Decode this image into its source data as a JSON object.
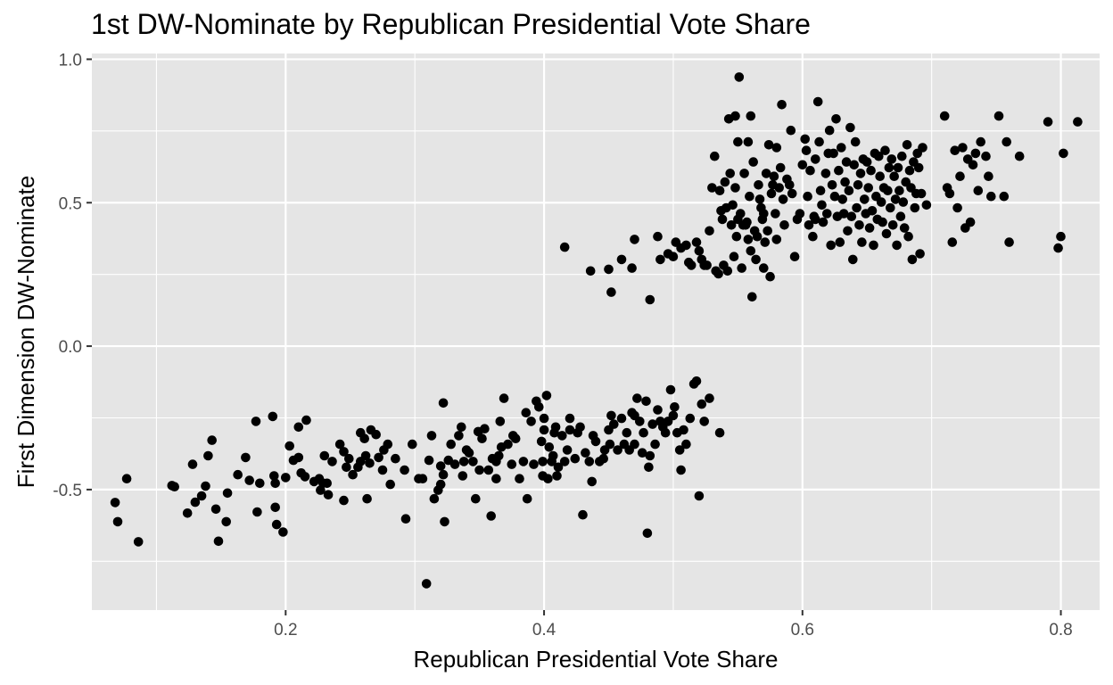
{
  "chart_data": {
    "type": "scatter",
    "title": "1st DW-Nominate by Republican Presidential Vote Share",
    "xlabel": "Republican Presidential Vote Share",
    "ylabel": "First Dimension DW-Nominate",
    "xlim": [
      0.05,
      0.83
    ],
    "ylim": [
      -0.92,
      1.02
    ],
    "x_ticks": [
      0.2,
      0.4,
      0.6,
      0.8
    ],
    "x_tick_labels": [
      "0.2",
      "0.4",
      "0.6",
      "0.8"
    ],
    "x_minor_ticks": [
      0.1,
      0.3,
      0.5,
      0.7
    ],
    "y_ticks": [
      -0.5,
      0.0,
      0.5,
      1.0
    ],
    "y_tick_labels": [
      "-0.5",
      "0.0",
      "0.5",
      "1.0"
    ],
    "y_minor_ticks": [
      -0.75,
      -0.25,
      0.25,
      0.75
    ],
    "grid": true,
    "colors": {
      "panel": "#e5e5e5",
      "grid": "#ffffff",
      "point": "#000000",
      "tick_text": "#4d4d4d"
    },
    "points": [
      [
        0.068,
        -0.545
      ],
      [
        0.07,
        -0.612
      ],
      [
        0.077,
        -0.462
      ],
      [
        0.086,
        -0.682
      ],
      [
        0.112,
        -0.486
      ],
      [
        0.114,
        -0.49
      ],
      [
        0.124,
        -0.582
      ],
      [
        0.128,
        -0.412
      ],
      [
        0.13,
        -0.544
      ],
      [
        0.135,
        -0.522
      ],
      [
        0.138,
        -0.488
      ],
      [
        0.14,
        -0.382
      ],
      [
        0.143,
        -0.328
      ],
      [
        0.146,
        -0.568
      ],
      [
        0.148,
        -0.68
      ],
      [
        0.154,
        -0.612
      ],
      [
        0.155,
        -0.512
      ],
      [
        0.163,
        -0.448
      ],
      [
        0.169,
        -0.388
      ],
      [
        0.172,
        -0.468
      ],
      [
        0.177,
        -0.262
      ],
      [
        0.178,
        -0.578
      ],
      [
        0.18,
        -0.478
      ],
      [
        0.19,
        -0.245
      ],
      [
        0.191,
        -0.452
      ],
      [
        0.192,
        -0.478
      ],
      [
        0.192,
        -0.562
      ],
      [
        0.193,
        -0.622
      ],
      [
        0.198,
        -0.648
      ],
      [
        0.2,
        -0.458
      ],
      [
        0.203,
        -0.348
      ],
      [
        0.206,
        -0.398
      ],
      [
        0.21,
        -0.282
      ],
      [
        0.21,
        -0.388
      ],
      [
        0.212,
        -0.442
      ],
      [
        0.215,
        -0.455
      ],
      [
        0.216,
        -0.258
      ],
      [
        0.222,
        -0.472
      ],
      [
        0.226,
        -0.462
      ],
      [
        0.227,
        -0.502
      ],
      [
        0.229,
        -0.478
      ],
      [
        0.23,
        -0.382
      ],
      [
        0.232,
        -0.478
      ],
      [
        0.233,
        -0.518
      ],
      [
        0.236,
        -0.402
      ],
      [
        0.242,
        -0.342
      ],
      [
        0.245,
        -0.368
      ],
      [
        0.245,
        -0.538
      ],
      [
        0.247,
        -0.422
      ],
      [
        0.249,
        -0.392
      ],
      [
        0.252,
        -0.448
      ],
      [
        0.256,
        -0.422
      ],
      [
        0.258,
        -0.302
      ],
      [
        0.258,
        -0.402
      ],
      [
        0.261,
        -0.322
      ],
      [
        0.262,
        -0.382
      ],
      [
        0.263,
        -0.532
      ],
      [
        0.265,
        -0.408
      ],
      [
        0.266,
        -0.292
      ],
      [
        0.27,
        -0.308
      ],
      [
        0.272,
        -0.388
      ],
      [
        0.275,
        -0.432
      ],
      [
        0.276,
        -0.362
      ],
      [
        0.279,
        -0.342
      ],
      [
        0.281,
        -0.482
      ],
      [
        0.285,
        -0.392
      ],
      [
        0.292,
        -0.432
      ],
      [
        0.293,
        -0.602
      ],
      [
        0.298,
        -0.342
      ],
      [
        0.303,
        -0.462
      ],
      [
        0.306,
        -0.462
      ],
      [
        0.309,
        -0.828
      ],
      [
        0.311,
        -0.398
      ],
      [
        0.313,
        -0.312
      ],
      [
        0.315,
        -0.532
      ],
      [
        0.318,
        -0.502
      ],
      [
        0.32,
        -0.418
      ],
      [
        0.32,
        -0.482
      ],
      [
        0.322,
        -0.448
      ],
      [
        0.322,
        -0.198
      ],
      [
        0.323,
        -0.612
      ],
      [
        0.326,
        -0.398
      ],
      [
        0.328,
        -0.342
      ],
      [
        0.331,
        -0.412
      ],
      [
        0.334,
        -0.312
      ],
      [
        0.336,
        -0.282
      ],
      [
        0.337,
        -0.452
      ],
      [
        0.338,
        -0.402
      ],
      [
        0.34,
        -0.362
      ],
      [
        0.342,
        -0.372
      ],
      [
        0.345,
        -0.402
      ],
      [
        0.347,
        -0.532
      ],
      [
        0.349,
        -0.298
      ],
      [
        0.35,
        -0.432
      ],
      [
        0.352,
        -0.322
      ],
      [
        0.354,
        -0.288
      ],
      [
        0.357,
        -0.432
      ],
      [
        0.359,
        -0.592
      ],
      [
        0.36,
        -0.392
      ],
      [
        0.363,
        -0.462
      ],
      [
        0.363,
        -0.402
      ],
      [
        0.365,
        -0.382
      ],
      [
        0.366,
        -0.262
      ],
      [
        0.367,
        -0.352
      ],
      [
        0.369,
        -0.182
      ],
      [
        0.372,
        -0.342
      ],
      [
        0.375,
        -0.412
      ],
      [
        0.376,
        -0.312
      ],
      [
        0.378,
        -0.322
      ],
      [
        0.381,
        -0.462
      ],
      [
        0.384,
        -0.402
      ],
      [
        0.386,
        -0.232
      ],
      [
        0.387,
        -0.532
      ],
      [
        0.39,
        -0.262
      ],
      [
        0.392,
        -0.412
      ],
      [
        0.394,
        -0.192
      ],
      [
        0.396,
        -0.212
      ],
      [
        0.398,
        -0.332
      ],
      [
        0.399,
        -0.402
      ],
      [
        0.399,
        -0.452
      ],
      [
        0.4,
        -0.252
      ],
      [
        0.4,
        -0.292
      ],
      [
        0.402,
        -0.172
      ],
      [
        0.403,
        -0.462
      ],
      [
        0.404,
        -0.352
      ],
      [
        0.406,
        -0.402
      ],
      [
        0.407,
        -0.382
      ],
      [
        0.408,
        -0.302
      ],
      [
        0.409,
        -0.282
      ],
      [
        0.41,
        -0.452
      ],
      [
        0.411,
        -0.422
      ],
      [
        0.414,
        -0.312
      ],
      [
        0.416,
        -0.402
      ],
      [
        0.418,
        -0.362
      ],
      [
        0.42,
        -0.292
      ],
      [
        0.42,
        -0.252
      ],
      [
        0.424,
        -0.392
      ],
      [
        0.426,
        -0.302
      ],
      [
        0.428,
        -0.282
      ],
      [
        0.43,
        -0.588
      ],
      [
        0.432,
        -0.372
      ],
      [
        0.435,
        -0.402
      ],
      [
        0.437,
        -0.472
      ],
      [
        0.438,
        -0.312
      ],
      [
        0.44,
        -0.332
      ],
      [
        0.443,
        -0.402
      ],
      [
        0.446,
        -0.392
      ],
      [
        0.447,
        -0.362
      ],
      [
        0.45,
        -0.292
      ],
      [
        0.451,
        -0.342
      ],
      [
        0.452,
        -0.242
      ],
      [
        0.454,
        -0.272
      ],
      [
        0.457,
        -0.362
      ],
      [
        0.46,
        -0.252
      ],
      [
        0.462,
        -0.342
      ],
      [
        0.464,
        -0.302
      ],
      [
        0.466,
        -0.362
      ],
      [
        0.468,
        -0.232
      ],
      [
        0.47,
        -0.342
      ],
      [
        0.47,
        -0.242
      ],
      [
        0.472,
        -0.182
      ],
      [
        0.474,
        -0.262
      ],
      [
        0.476,
        -0.372
      ],
      [
        0.477,
        -0.302
      ],
      [
        0.479,
        -0.192
      ],
      [
        0.48,
        -0.652
      ],
      [
        0.481,
        -0.422
      ],
      [
        0.482,
        -0.382
      ],
      [
        0.484,
        -0.272
      ],
      [
        0.486,
        -0.342
      ],
      [
        0.488,
        -0.222
      ],
      [
        0.49,
        -0.262
      ],
      [
        0.492,
        -0.282
      ],
      [
        0.494,
        -0.302
      ],
      [
        0.496,
        -0.262
      ],
      [
        0.498,
        -0.152
      ],
      [
        0.5,
        -0.242
      ],
      [
        0.501,
        -0.212
      ],
      [
        0.503,
        -0.302
      ],
      [
        0.505,
        -0.362
      ],
      [
        0.506,
        -0.432
      ],
      [
        0.508,
        -0.292
      ],
      [
        0.51,
        -0.342
      ],
      [
        0.513,
        -0.252
      ],
      [
        0.516,
        -0.132
      ],
      [
        0.518,
        -0.122
      ],
      [
        0.52,
        -0.522
      ],
      [
        0.522,
        -0.202
      ],
      [
        0.524,
        -0.262
      ],
      [
        0.528,
        -0.182
      ],
      [
        0.536,
        -0.302
      ],
      [
        0.416,
        0.345
      ],
      [
        0.436,
        0.262
      ],
      [
        0.45,
        0.268
      ],
      [
        0.452,
        0.188
      ],
      [
        0.46,
        0.302
      ],
      [
        0.468,
        0.272
      ],
      [
        0.47,
        0.372
      ],
      [
        0.482,
        0.162
      ],
      [
        0.488,
        0.382
      ],
      [
        0.49,
        0.302
      ],
      [
        0.496,
        0.322
      ],
      [
        0.5,
        0.312
      ],
      [
        0.502,
        0.362
      ],
      [
        0.506,
        0.342
      ],
      [
        0.51,
        0.352
      ],
      [
        0.512,
        0.292
      ],
      [
        0.514,
        0.282
      ],
      [
        0.518,
        0.362
      ],
      [
        0.52,
        0.332
      ],
      [
        0.522,
        0.302
      ],
      [
        0.524,
        0.282
      ],
      [
        0.526,
        0.282
      ],
      [
        0.528,
        0.402
      ],
      [
        0.53,
        0.552
      ],
      [
        0.532,
        0.662
      ],
      [
        0.533,
        0.262
      ],
      [
        0.535,
        0.252
      ],
      [
        0.536,
        0.542
      ],
      [
        0.537,
        0.472
      ],
      [
        0.538,
        0.442
      ],
      [
        0.539,
        0.282
      ],
      [
        0.54,
        0.572
      ],
      [
        0.541,
        0.482
      ],
      [
        0.542,
        0.262
      ],
      [
        0.543,
        0.792
      ],
      [
        0.544,
        0.602
      ],
      [
        0.545,
        0.422
      ],
      [
        0.546,
        0.492
      ],
      [
        0.547,
        0.312
      ],
      [
        0.548,
        0.552
      ],
      [
        0.548,
        0.802
      ],
      [
        0.549,
        0.382
      ],
      [
        0.55,
        0.442
      ],
      [
        0.55,
        0.712
      ],
      [
        0.551,
        0.938
      ],
      [
        0.552,
        0.462
      ],
      [
        0.553,
        0.272
      ],
      [
        0.554,
        0.422
      ],
      [
        0.555,
        0.602
      ],
      [
        0.556,
        0.422
      ],
      [
        0.557,
        0.432
      ],
      [
        0.558,
        0.372
      ],
      [
        0.558,
        0.712
      ],
      [
        0.559,
        0.522
      ],
      [
        0.56,
        0.802
      ],
      [
        0.56,
        0.332
      ],
      [
        0.561,
        0.172
      ],
      [
        0.562,
        0.642
      ],
      [
        0.563,
        0.402
      ],
      [
        0.564,
        0.302
      ],
      [
        0.565,
        0.382
      ],
      [
        0.566,
        0.562
      ],
      [
        0.567,
        0.512
      ],
      [
        0.568,
        0.482
      ],
      [
        0.569,
        0.442
      ],
      [
        0.57,
        0.462
      ],
      [
        0.57,
        0.272
      ],
      [
        0.571,
        0.362
      ],
      [
        0.572,
        0.602
      ],
      [
        0.573,
        0.402
      ],
      [
        0.574,
        0.702
      ],
      [
        0.575,
        0.242
      ],
      [
        0.576,
        0.532
      ],
      [
        0.577,
        0.562
      ],
      [
        0.578,
        0.592
      ],
      [
        0.579,
        0.462
      ],
      [
        0.58,
        0.692
      ],
      [
        0.58,
        0.372
      ],
      [
        0.582,
        0.552
      ],
      [
        0.583,
        0.622
      ],
      [
        0.584,
        0.842
      ],
      [
        0.585,
        0.512
      ],
      [
        0.586,
        0.422
      ],
      [
        0.588,
        0.582
      ],
      [
        0.59,
        0.562
      ],
      [
        0.591,
        0.752
      ],
      [
        0.592,
        0.532
      ],
      [
        0.594,
        0.312
      ],
      [
        0.596,
        0.442
      ],
      [
        0.598,
        0.462
      ],
      [
        0.6,
        0.632
      ],
      [
        0.602,
        0.722
      ],
      [
        0.603,
        0.682
      ],
      [
        0.604,
        0.522
      ],
      [
        0.605,
        0.422
      ],
      [
        0.606,
        0.612
      ],
      [
        0.608,
        0.382
      ],
      [
        0.609,
        0.452
      ],
      [
        0.61,
        0.442
      ],
      [
        0.61,
        0.652
      ],
      [
        0.612,
        0.852
      ],
      [
        0.613,
        0.712
      ],
      [
        0.614,
        0.542
      ],
      [
        0.615,
        0.492
      ],
      [
        0.616,
        0.432
      ],
      [
        0.618,
        0.602
      ],
      [
        0.619,
        0.462
      ],
      [
        0.62,
        0.672
      ],
      [
        0.621,
        0.752
      ],
      [
        0.622,
        0.352
      ],
      [
        0.623,
        0.562
      ],
      [
        0.624,
        0.672
      ],
      [
        0.625,
        0.522
      ],
      [
        0.626,
        0.792
      ],
      [
        0.627,
        0.452
      ],
      [
        0.628,
        0.612
      ],
      [
        0.629,
        0.362
      ],
      [
        0.63,
        0.692
      ],
      [
        0.631,
        0.512
      ],
      [
        0.632,
        0.462
      ],
      [
        0.633,
        0.572
      ],
      [
        0.634,
        0.642
      ],
      [
        0.635,
        0.402
      ],
      [
        0.636,
        0.542
      ],
      [
        0.637,
        0.762
      ],
      [
        0.638,
        0.452
      ],
      [
        0.639,
        0.302
      ],
      [
        0.64,
        0.632
      ],
      [
        0.641,
        0.712
      ],
      [
        0.642,
        0.482
      ],
      [
        0.643,
        0.562
      ],
      [
        0.644,
        0.422
      ],
      [
        0.645,
        0.602
      ],
      [
        0.646,
        0.362
      ],
      [
        0.647,
        0.652
      ],
      [
        0.648,
        0.512
      ],
      [
        0.649,
        0.462
      ],
      [
        0.65,
        0.642
      ],
      [
        0.651,
        0.552
      ],
      [
        0.652,
        0.412
      ],
      [
        0.653,
        0.612
      ],
      [
        0.654,
        0.472
      ],
      [
        0.655,
        0.352
      ],
      [
        0.656,
        0.672
      ],
      [
        0.657,
        0.522
      ],
      [
        0.658,
        0.442
      ],
      [
        0.659,
        0.662
      ],
      [
        0.66,
        0.592
      ],
      [
        0.661,
        0.502
      ],
      [
        0.662,
        0.432
      ],
      [
        0.663,
        0.552
      ],
      [
        0.664,
        0.682
      ],
      [
        0.665,
        0.392
      ],
      [
        0.666,
        0.542
      ],
      [
        0.667,
        0.622
      ],
      [
        0.668,
        0.482
      ],
      [
        0.669,
        0.652
      ],
      [
        0.67,
        0.422
      ],
      [
        0.671,
        0.592
      ],
      [
        0.672,
        0.512
      ],
      [
        0.673,
        0.352
      ],
      [
        0.674,
        0.622
      ],
      [
        0.675,
        0.542
      ],
      [
        0.676,
        0.452
      ],
      [
        0.677,
        0.662
      ],
      [
        0.678,
        0.502
      ],
      [
        0.679,
        0.412
      ],
      [
        0.68,
        0.572
      ],
      [
        0.681,
        0.702
      ],
      [
        0.682,
        0.382
      ],
      [
        0.683,
        0.612
      ],
      [
        0.684,
        0.552
      ],
      [
        0.685,
        0.302
      ],
      [
        0.686,
        0.642
      ],
      [
        0.687,
        0.482
      ],
      [
        0.688,
        0.532
      ],
      [
        0.689,
        0.672
      ],
      [
        0.69,
        0.622
      ],
      [
        0.691,
        0.322
      ],
      [
        0.692,
        0.532
      ],
      [
        0.693,
        0.692
      ],
      [
        0.696,
        0.492
      ],
      [
        0.71,
        0.802
      ],
      [
        0.712,
        0.552
      ],
      [
        0.714,
        0.532
      ],
      [
        0.716,
        0.362
      ],
      [
        0.718,
        0.682
      ],
      [
        0.72,
        0.482
      ],
      [
        0.722,
        0.592
      ],
      [
        0.724,
        0.692
      ],
      [
        0.726,
        0.412
      ],
      [
        0.728,
        0.652
      ],
      [
        0.73,
        0.432
      ],
      [
        0.732,
        0.632
      ],
      [
        0.734,
        0.672
      ],
      [
        0.736,
        0.542
      ],
      [
        0.738,
        0.712
      ],
      [
        0.742,
        0.662
      ],
      [
        0.744,
        0.592
      ],
      [
        0.746,
        0.522
      ],
      [
        0.752,
        0.802
      ],
      [
        0.756,
        0.522
      ],
      [
        0.758,
        0.712
      ],
      [
        0.76,
        0.362
      ],
      [
        0.768,
        0.662
      ],
      [
        0.79,
        0.782
      ],
      [
        0.798,
        0.342
      ],
      [
        0.8,
        0.382
      ],
      [
        0.802,
        0.672
      ],
      [
        0.813,
        0.782
      ]
    ]
  }
}
